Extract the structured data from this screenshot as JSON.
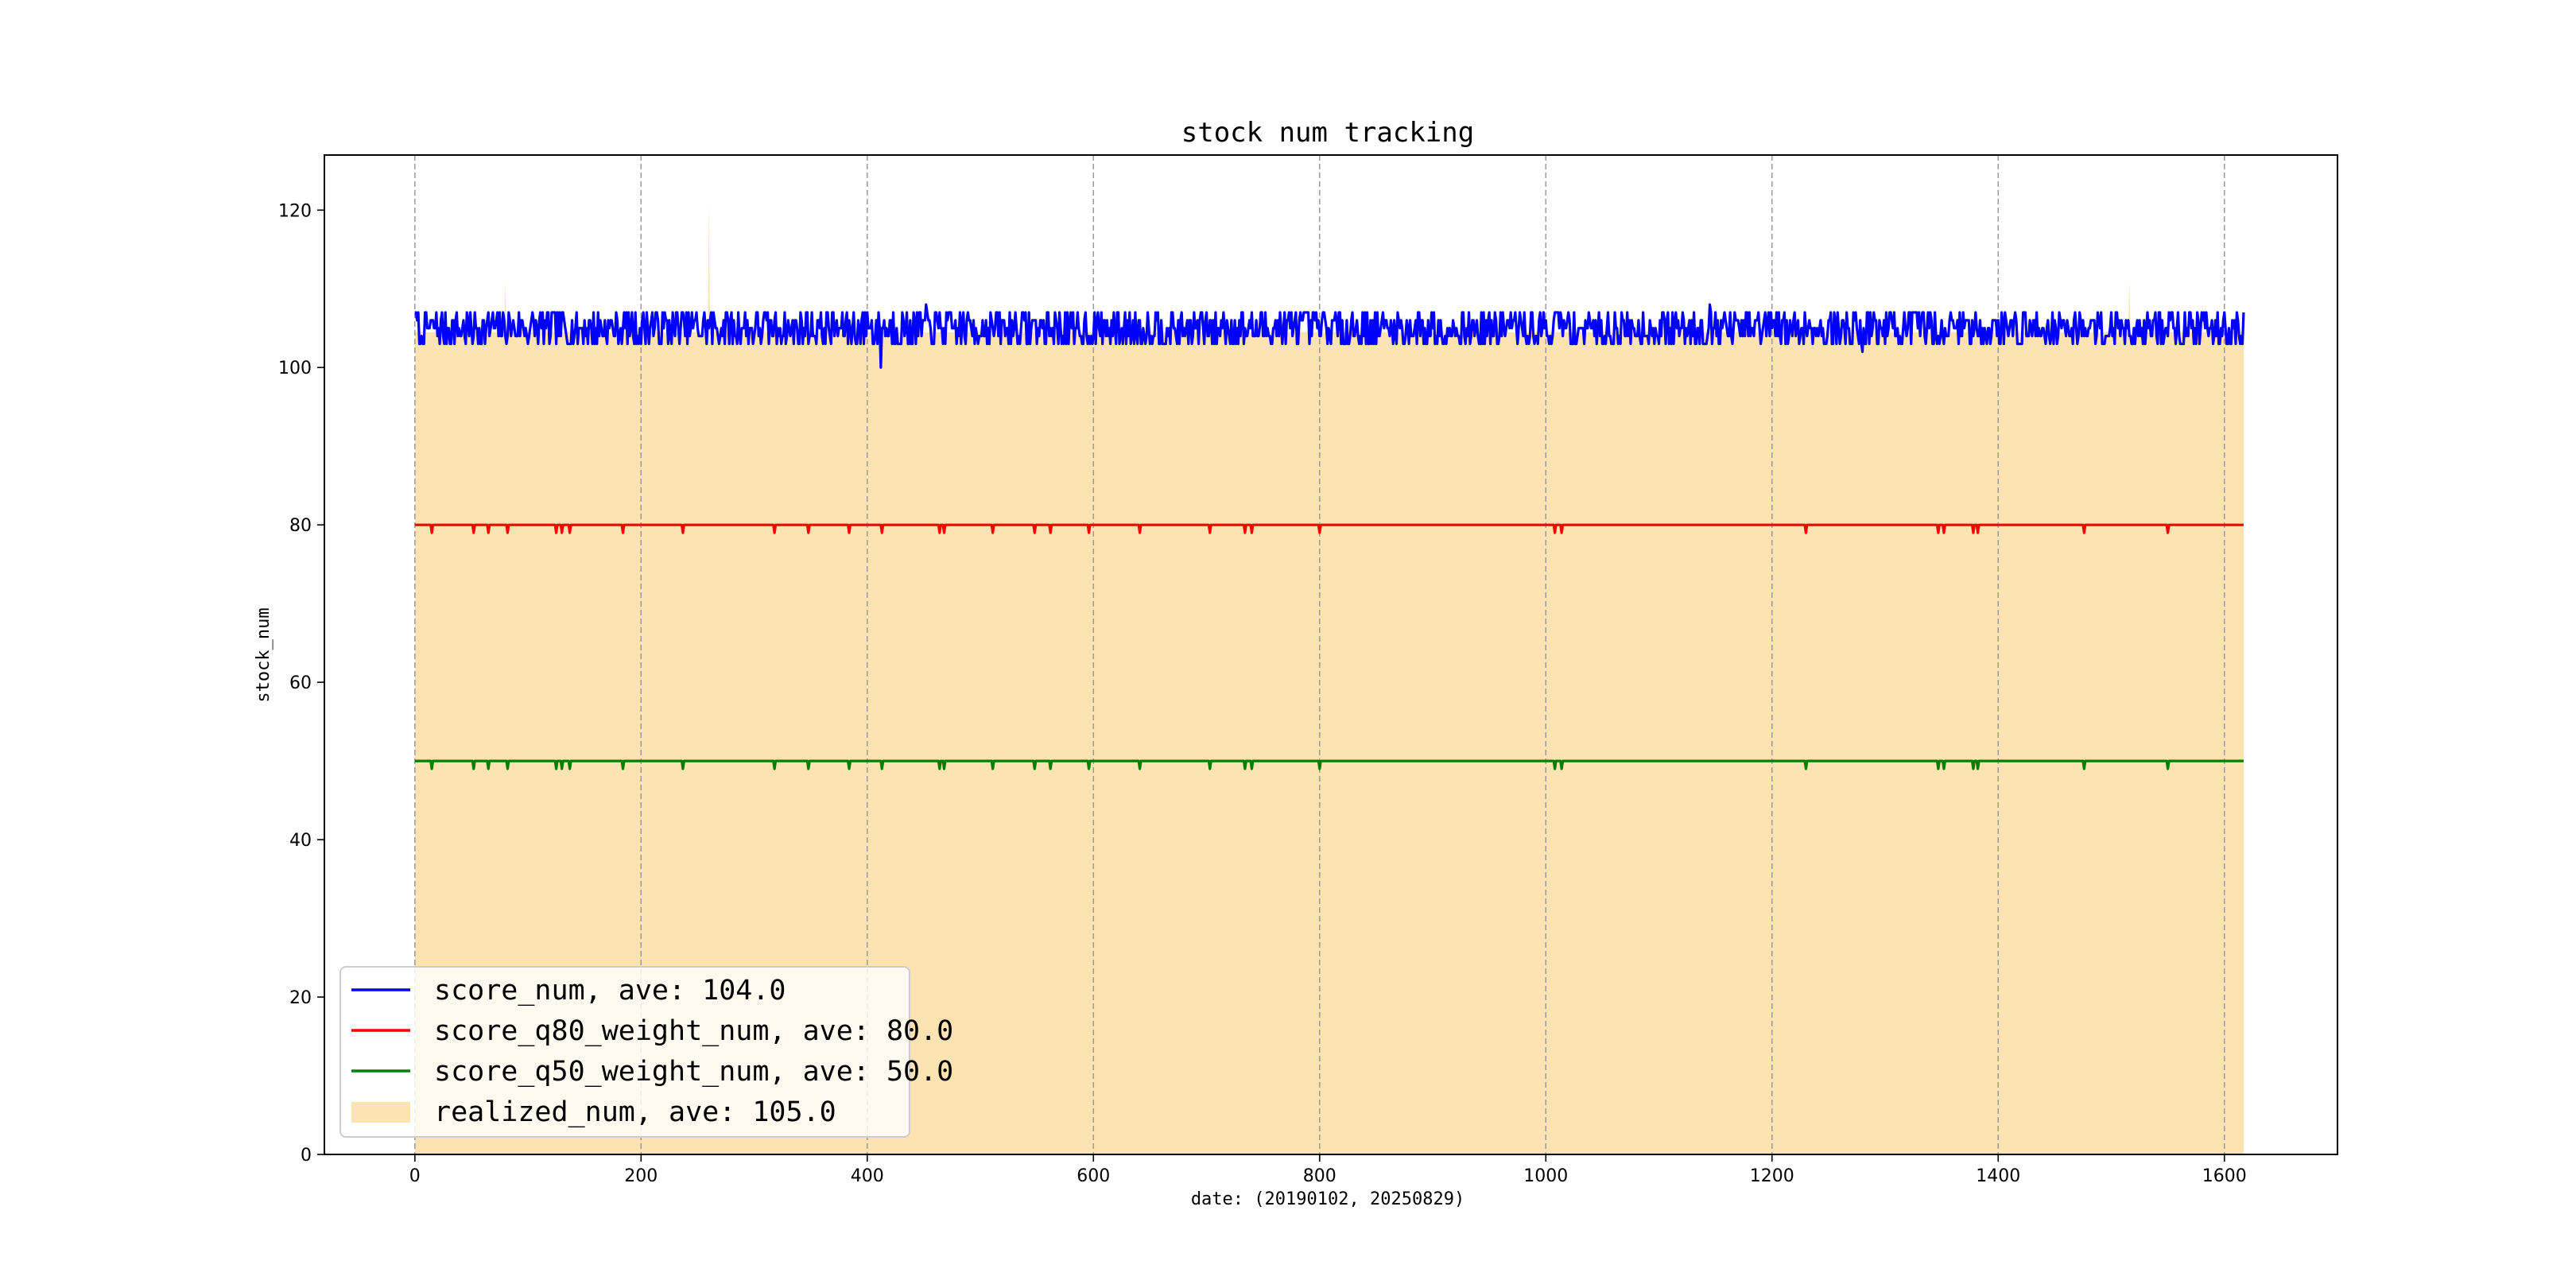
{
  "chart_data": {
    "type": "line",
    "title": "stock num tracking",
    "xlabel": "date: (20190102, 20250829)",
    "ylabel": "stock_num",
    "xlim": [
      -80,
      1700
    ],
    "ylim": [
      0,
      127
    ],
    "x_ticks": [
      "0",
      "200",
      "400",
      "600",
      "800",
      "1000",
      "1200",
      "1400",
      "1600"
    ],
    "y_ticks": [
      "0",
      "20",
      "40",
      "60",
      "80",
      "100",
      "120"
    ],
    "x_grid": true,
    "y_grid": false,
    "x_count": 1618,
    "legend_position": "lower-left",
    "series": [
      {
        "name": "score_num, ave: 104.0",
        "kind": "line",
        "color": "#0000ff",
        "baseline": 104,
        "noise_range": [
          103,
          107
        ],
        "spikes": [
          [
            0,
            107
          ],
          [
            5,
            103
          ],
          [
            210,
            107
          ],
          [
            400,
            107
          ],
          [
            412,
            100
          ],
          [
            452,
            108
          ],
          [
            583,
            103
          ],
          [
            1010,
            107
          ],
          [
            1145,
            108
          ],
          [
            1210,
            106
          ],
          [
            1280,
            102
          ],
          [
            1600,
            107
          ],
          [
            1616,
            103
          ]
        ]
      },
      {
        "name": "score_q80_weight_num, ave: 80.0",
        "kind": "line",
        "color": "#ff0000",
        "baseline": 80,
        "dips_to": 79,
        "dip_x": [
          15,
          52,
          65,
          82,
          125,
          130,
          137,
          184,
          237,
          318,
          348,
          384,
          413,
          464,
          468,
          511,
          548,
          562,
          596,
          641,
          703,
          734,
          740,
          800,
          1008,
          1014,
          1230,
          1347,
          1352,
          1378,
          1382,
          1476,
          1550
        ]
      },
      {
        "name": "score_q50_weight_num, ave: 50.0",
        "kind": "line",
        "color": "#008000",
        "baseline": 50,
        "dips_to": 49,
        "dip_x": [
          15,
          52,
          65,
          82,
          125,
          130,
          137,
          184,
          237,
          318,
          348,
          384,
          413,
          464,
          468,
          511,
          548,
          562,
          596,
          641,
          703,
          734,
          740,
          800,
          1008,
          1014,
          1230,
          1347,
          1352,
          1378,
          1382,
          1476,
          1550
        ]
      },
      {
        "name": "realized_num, ave: 105.0",
        "kind": "area",
        "color": "#fde2b2",
        "baseline": 104.5,
        "spikes": [
          [
            80,
            111
          ],
          [
            260,
            121
          ],
          [
            1516,
            111
          ]
        ]
      }
    ]
  }
}
